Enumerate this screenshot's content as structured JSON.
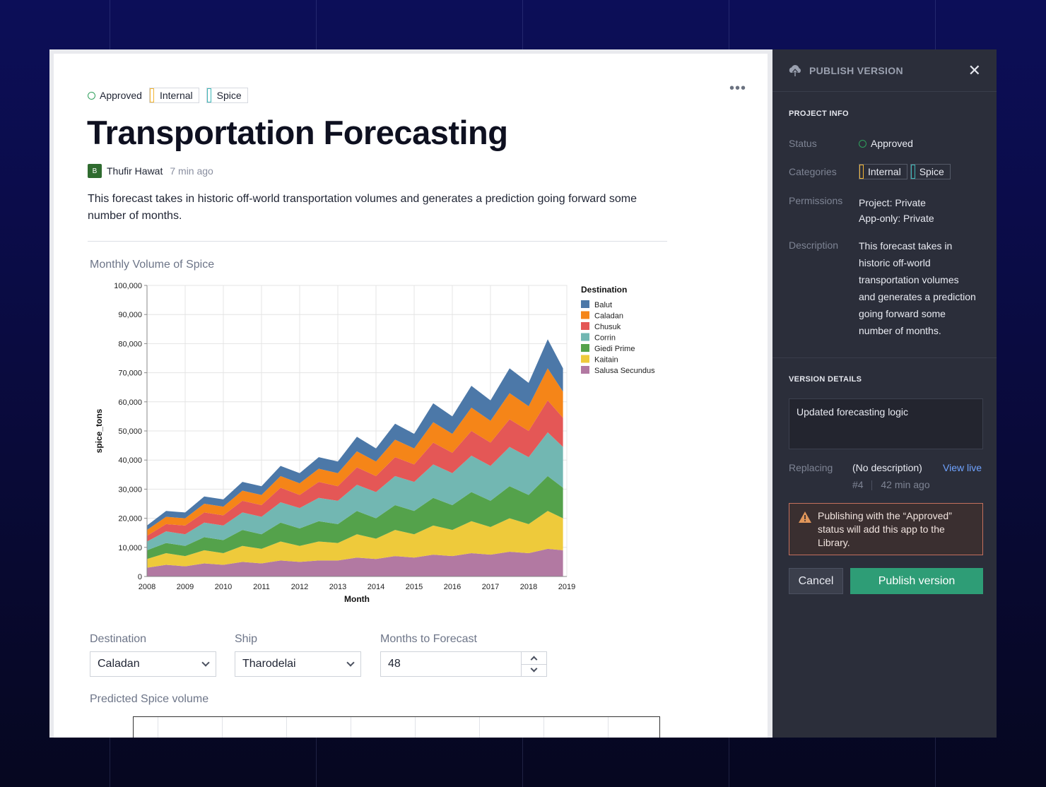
{
  "doc": {
    "status": "Approved",
    "categories": [
      "Internal",
      "Spice"
    ],
    "title": "Transportation Forecasting",
    "author_initial": "B",
    "author": "Thufir Hawat",
    "time_ago": "7 min ago",
    "description": "This forecast takes in historic off-world transportation volumes and generates a prediction going forward some number of months.",
    "chart_title": "Monthly Volume of Spice",
    "controls": {
      "destination_label": "Destination",
      "destination_value": "Caladan",
      "ship_label": "Ship",
      "ship_value": "Tharodelai",
      "months_label": "Months to Forecast",
      "months_value": "48"
    },
    "predicted_title": "Predicted Spice volume"
  },
  "colors": {
    "approved": "#2fa05c",
    "internal": "#f2b534",
    "spice": "#3fb7b7",
    "publish": "#2e9d76"
  },
  "panel": {
    "header": "PUBLISH VERSION",
    "project_info_title": "PROJECT INFO",
    "status_label": "Status",
    "status_value": "Approved",
    "categories_label": "Categories",
    "categories": [
      "Internal",
      "Spice"
    ],
    "permissions_label": "Permissions",
    "permissions_project_key": "Project:",
    "permissions_project": "Private",
    "permissions_app_key": "App-only:",
    "permissions_app": "Private",
    "description_label": "Description",
    "description_lines": [
      "This forecast takes in",
      "historic off-world",
      "transportation volumes",
      "and generates a prediction",
      "going forward some",
      "number of months."
    ],
    "version_details_title": "VERSION DETAILS",
    "version_description": "Updated forecasting logic",
    "replacing_label": "Replacing",
    "replacing_value": "(No description)",
    "view_live": "View live",
    "version_number": "#4",
    "version_time": "42 min ago",
    "warning": "Publishing with the “Approved” status will add this app to the Library.",
    "cancel": "Cancel",
    "publish": "Publish version"
  },
  "chart_data": {
    "type": "area",
    "title": "Monthly Volume of Spice",
    "xlabel": "Month",
    "ylabel": "spice_tons",
    "ylim": [
      0,
      100000
    ],
    "yticks": [
      "0",
      "10,000",
      "20,000",
      "30,000",
      "40,000",
      "50,000",
      "60,000",
      "70,000",
      "80,000",
      "90,000",
      "100,000"
    ],
    "xticks": [
      "2008",
      "2009",
      "2010",
      "2011",
      "2012",
      "2013",
      "2014",
      "2015",
      "2016",
      "2017",
      "2018",
      "2019"
    ],
    "legend_title": "Destination",
    "legend_position": "right",
    "x": [
      2008.0,
      2008.5,
      2009.0,
      2009.5,
      2010.0,
      2010.5,
      2011.0,
      2011.5,
      2012.0,
      2012.5,
      2013.0,
      2013.5,
      2014.0,
      2014.5,
      2015.0,
      2015.5,
      2016.0,
      2016.5,
      2017.0,
      2017.5,
      2018.0,
      2018.5,
      2018.9
    ],
    "series": [
      {
        "name": "Salusa Secundus",
        "color": "#b279a2",
        "values": [
          3000,
          4000,
          3500,
          4500,
          4000,
          5000,
          4500,
          5500,
          5000,
          5500,
          5500,
          6500,
          6000,
          7000,
          6500,
          7500,
          7000,
          8000,
          7500,
          8500,
          8000,
          9500,
          9000
        ]
      },
      {
        "name": "Kaitain",
        "color": "#eeca3b",
        "values": [
          3000,
          4000,
          3500,
          4500,
          4000,
          5500,
          5000,
          6500,
          5500,
          6500,
          6000,
          8000,
          7000,
          9000,
          8000,
          10000,
          9000,
          11000,
          9500,
          11500,
          10000,
          13000,
          11000
        ]
      },
      {
        "name": "Giedi Prime",
        "color": "#54a24b",
        "values": [
          3000,
          3500,
          3500,
          4500,
          4500,
          5500,
          5000,
          6500,
          6000,
          7000,
          6500,
          8000,
          7000,
          8500,
          8000,
          9500,
          8500,
          10000,
          9000,
          11000,
          10000,
          12000,
          10500
        ]
      },
      {
        "name": "Corrin",
        "color": "#72b7b2",
        "values": [
          3000,
          4000,
          4000,
          5000,
          5000,
          6000,
          6000,
          7000,
          7000,
          8000,
          8000,
          9000,
          9000,
          10000,
          10000,
          11500,
          11000,
          12500,
          12000,
          13500,
          13000,
          15000,
          14000
        ]
      },
      {
        "name": "Chusuk",
        "color": "#e45756",
        "values": [
          2000,
          2500,
          3000,
          3500,
          3500,
          4000,
          4000,
          5000,
          4500,
          5500,
          5000,
          6000,
          5500,
          6500,
          6000,
          7500,
          7000,
          8500,
          8000,
          9500,
          9000,
          11000,
          10000
        ]
      },
      {
        "name": "Caladan",
        "color": "#f58518",
        "values": [
          2000,
          2500,
          2500,
          3000,
          3000,
          3500,
          3500,
          4000,
          4000,
          4500,
          4500,
          5500,
          5000,
          6000,
          5500,
          7000,
          6500,
          8000,
          7500,
          9000,
          8500,
          11000,
          9000
        ]
      },
      {
        "name": "Balut",
        "color": "#4c78a8",
        "values": [
          1500,
          2000,
          2000,
          2500,
          2500,
          3000,
          3000,
          3500,
          3500,
          4000,
          4000,
          5000,
          4500,
          5500,
          5000,
          6500,
          6000,
          7500,
          7000,
          8500,
          8000,
          10000,
          8000
        ]
      }
    ]
  }
}
